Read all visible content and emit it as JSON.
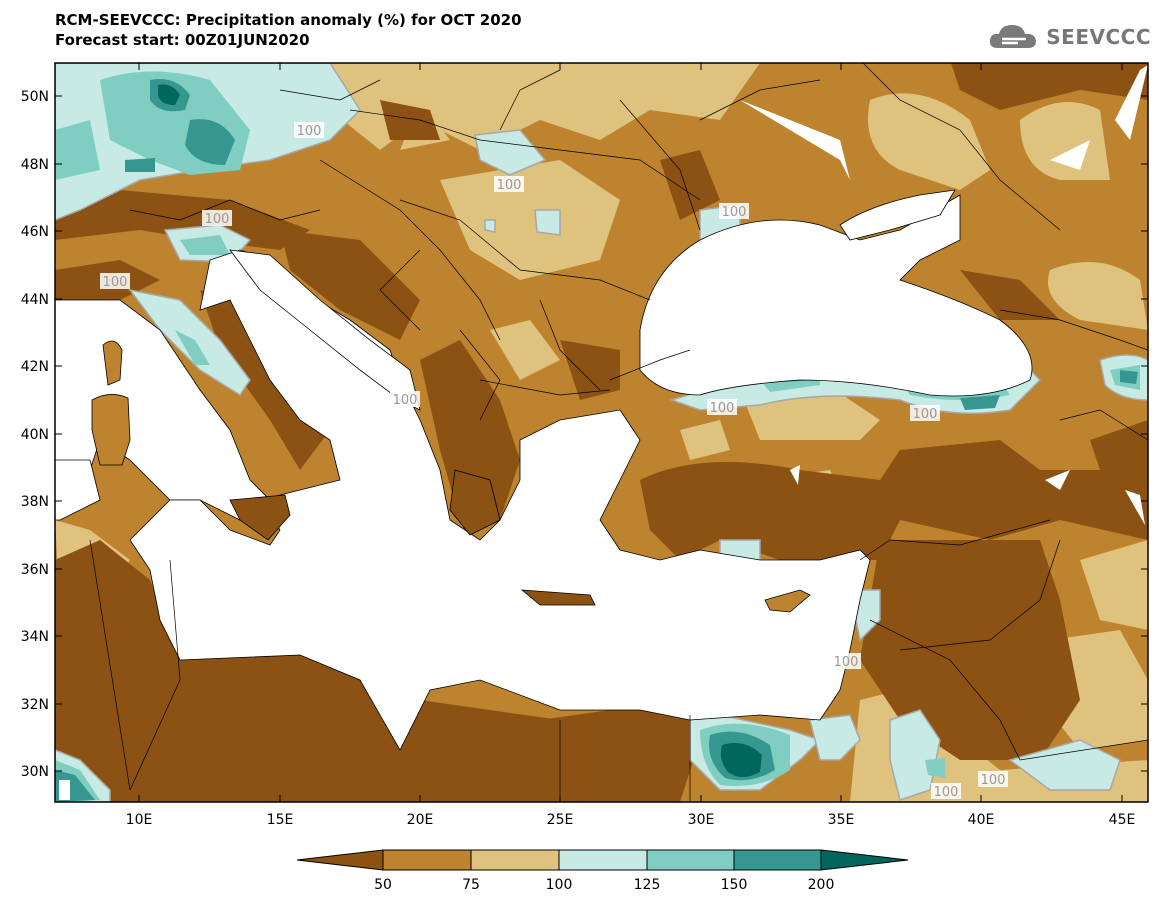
{
  "title": {
    "line1": "RCM-SEEVCCC: Precipitation anomaly (%) for OCT 2020",
    "line2": "Forecast start: 00Z01JUN2020"
  },
  "logo": {
    "text": "SEEVCCC",
    "icon": "cloud-icon"
  },
  "map": {
    "lat_labels": [
      "50N",
      "48N",
      "46N",
      "44N",
      "42N",
      "40N",
      "38N",
      "36N",
      "34N",
      "32N",
      "30N"
    ],
    "lon_labels": [
      "10E",
      "15E",
      "20E",
      "25E",
      "30E",
      "35E",
      "40E",
      "45E"
    ],
    "contour_labels": [
      "100",
      "100",
      "100",
      "100",
      "100",
      "100",
      "100",
      "100",
      "100",
      "100",
      "100"
    ]
  },
  "colors": {
    "c_lt50": "#8c5213",
    "c_50_75": "#bd832e",
    "c_75_100": "#dfc27d",
    "c_100_125": "#c7eae5",
    "c_125_150": "#80cdc1",
    "c_150_200": "#35978f",
    "c_gt200": "#01665e",
    "contour": "#a8a8a8",
    "sea": "#ffffff"
  },
  "legend": {
    "ticks": [
      "50",
      "75",
      "100",
      "125",
      "150",
      "200"
    ]
  }
}
